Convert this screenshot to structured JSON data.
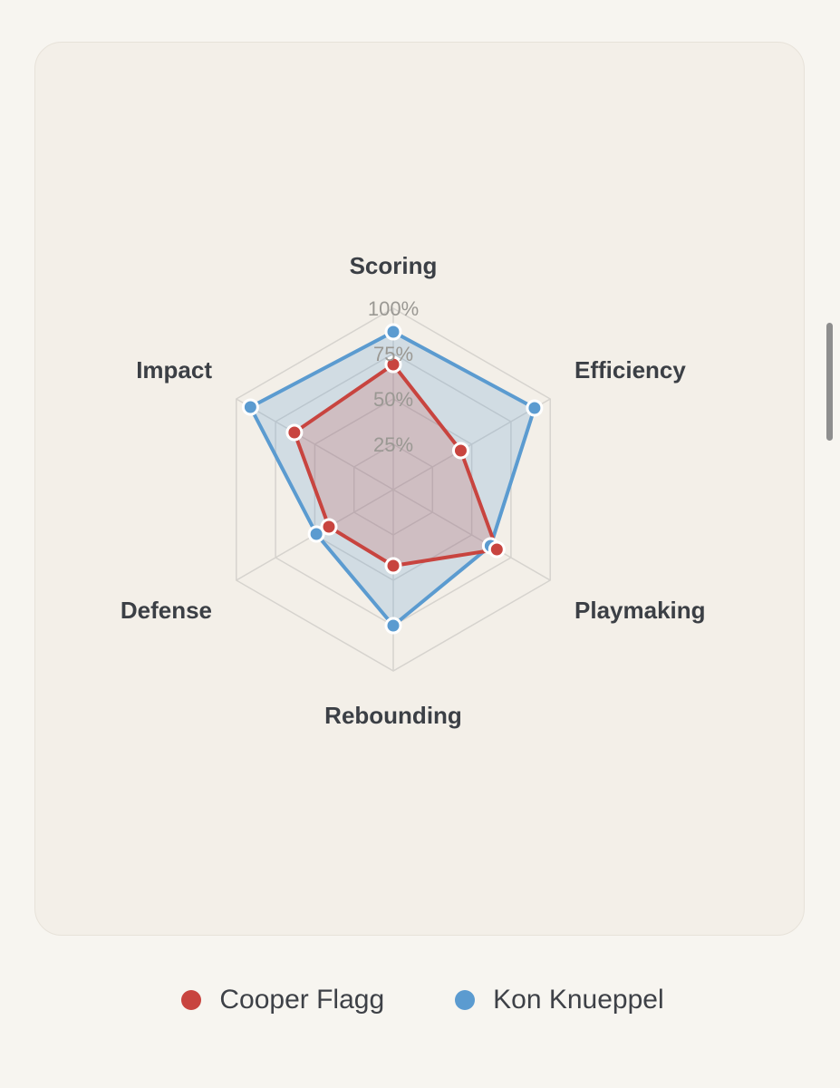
{
  "chart_data": {
    "type": "radar",
    "axes": [
      "Scoring",
      "Efficiency",
      "Playmaking",
      "Rebounding",
      "Defense",
      "Impact"
    ],
    "tick_labels": [
      "25%",
      "50%",
      "75%",
      "100%"
    ],
    "ticks": [
      0.25,
      0.5,
      0.75,
      1.0
    ],
    "range": [
      0,
      1.0
    ],
    "series": [
      {
        "name": "Kon Knueppel",
        "color": "#5b9bd0",
        "values": [
          0.87,
          0.9,
          0.62,
          0.75,
          0.49,
          0.91
        ]
      },
      {
        "name": "Cooper Flagg",
        "color": "#c8443f",
        "values": [
          0.69,
          0.43,
          0.66,
          0.42,
          0.41,
          0.63
        ]
      }
    ],
    "legend": [
      "Cooper Flagg",
      "Kon Knueppel"
    ],
    "legend_colors": [
      "#c8443f",
      "#5b9bd0"
    ],
    "legend_position": "bottom",
    "grid": true
  }
}
